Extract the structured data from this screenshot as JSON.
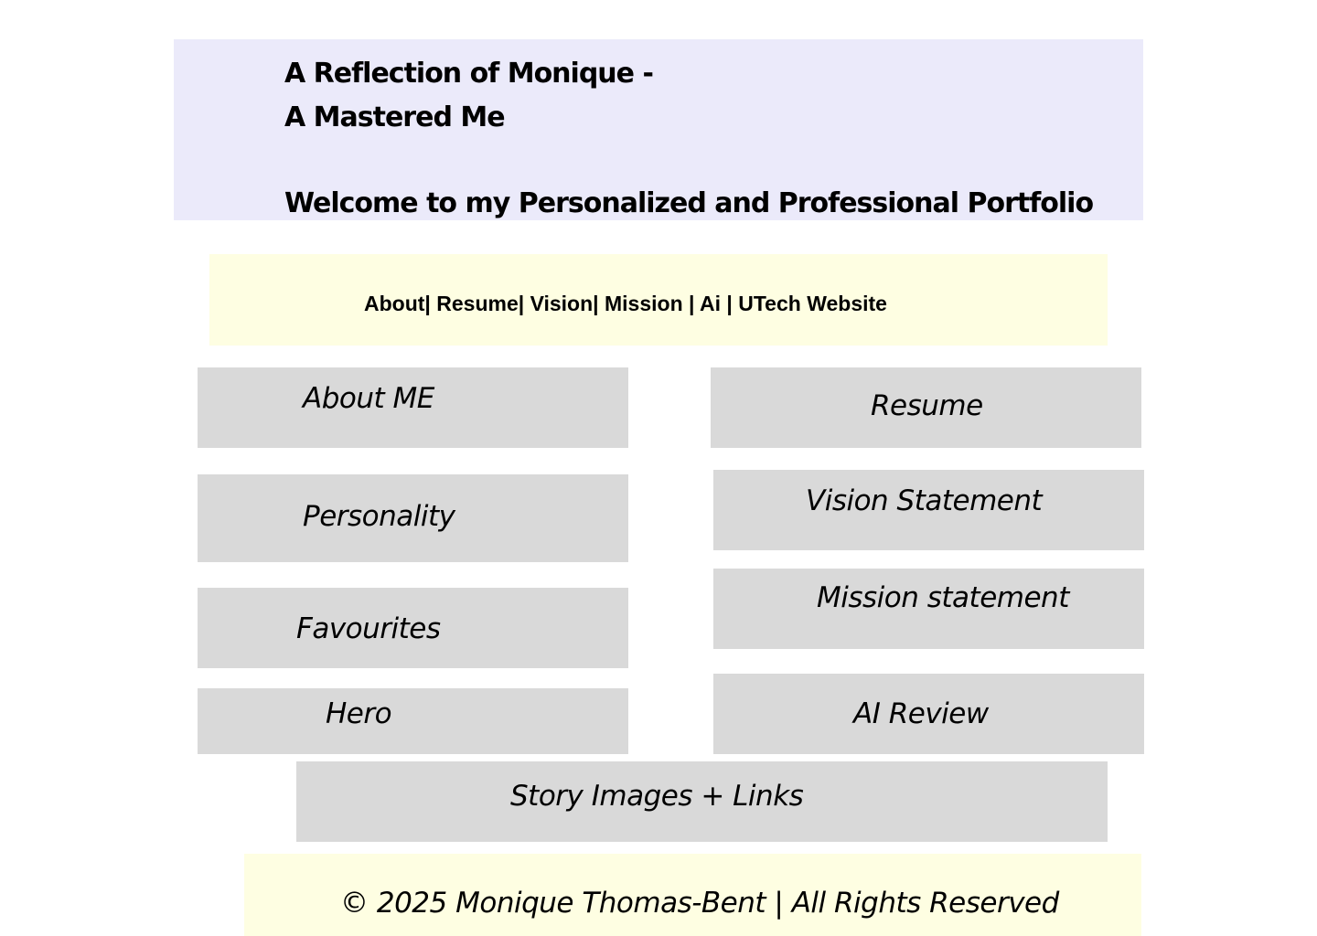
{
  "header": {
    "title_line1": "A Reflection of Monique -",
    "title_line2": "A Mastered Me",
    "welcome": "Welcome to my Personalized and Professional  Portfolio"
  },
  "nav": {
    "about": "About",
    "sep1": "| ",
    "resume": "Resume",
    "sep2": "| ",
    "vision": "Vision",
    "sep3": "| ",
    "mission": "Mission ",
    "sep4": "| ",
    "ai": "Ai ",
    "sep5": "| ",
    "utech": "UTech Website"
  },
  "tiles": {
    "about_me": "About ME",
    "resume": "Resume",
    "personality": "Personality",
    "vision_statement": "Vision Statement",
    "favourites": "Favourites",
    "mission_statement": "Mission statement",
    "hero": "Hero",
    "ai_review": "AI  Review",
    "story_images_links": "Story Images + Links"
  },
  "footer": {
    "copyright": "© 2025 Monique Thomas-Bent | All Rights Reserved"
  },
  "colors": {
    "header_bg": "#ebeafa",
    "nav_bg": "#fefee2",
    "tile_bg": "#d9d9d9",
    "footer_bg": "#fefee2",
    "text": "#000000"
  }
}
